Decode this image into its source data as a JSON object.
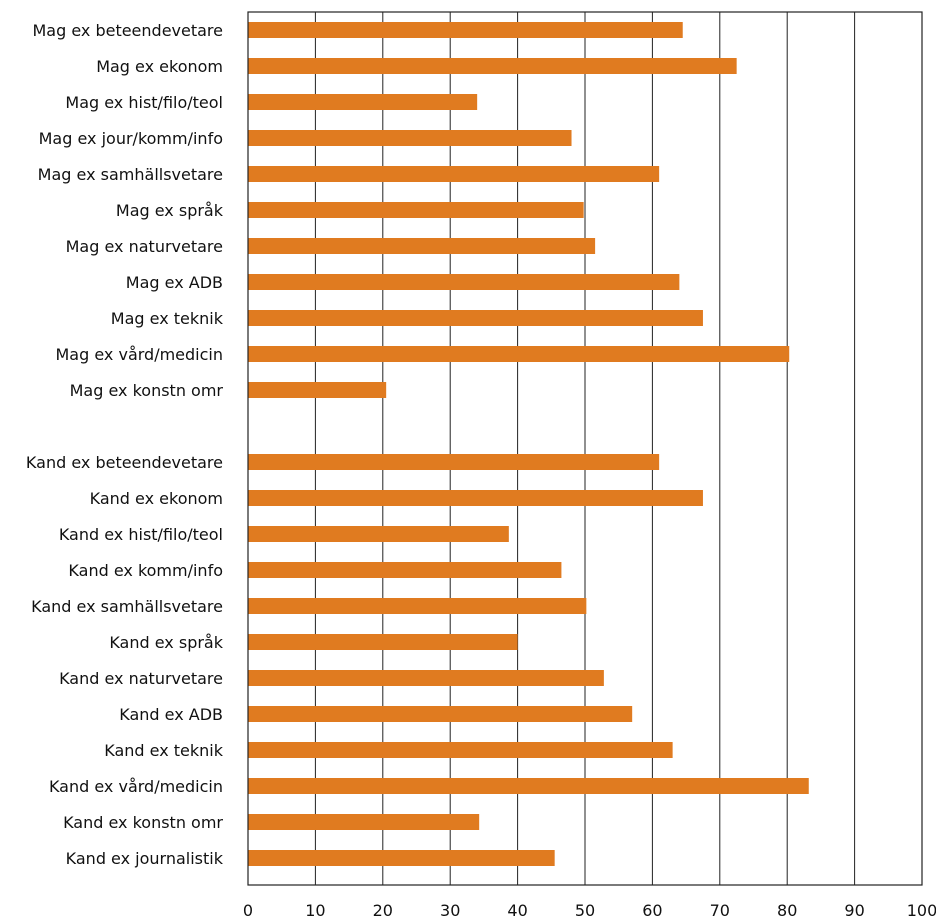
{
  "chart_data": {
    "type": "bar",
    "orientation": "horizontal",
    "categories": [
      "Mag ex beteendevetare",
      "Mag ex ekonom",
      "Mag ex hist/filo/teol",
      "Mag ex jour/komm/info",
      "Mag ex samhällsvetare",
      "Mag ex språk",
      "Mag ex naturvetare",
      "Mag ex ADB",
      "Mag ex teknik",
      "Mag ex vård/medicin",
      "Mag ex konstn omr",
      "",
      "Kand ex beteendevetare",
      "Kand ex ekonom",
      "Kand ex hist/filo/teol",
      "Kand ex komm/info",
      "Kand ex samhällsvetare",
      "Kand ex språk",
      "Kand ex naturvetare",
      "Kand ex ADB",
      "Kand ex teknik",
      "Kand ex vård/medicin",
      "Kand ex konstn omr",
      "Kand ex journalistik"
    ],
    "values": [
      64.5,
      72.5,
      34,
      48,
      61,
      49.8,
      51.5,
      64,
      67.5,
      80.3,
      20.5,
      null,
      61,
      67.5,
      38.7,
      46.5,
      50.2,
      40,
      52.8,
      57,
      63,
      83.2,
      34.3,
      45.5
    ],
    "xlim": [
      0,
      100
    ],
    "xticks": [
      "0",
      "10",
      "20",
      "30",
      "40",
      "50",
      "60",
      "70",
      "80",
      "90",
      "100"
    ],
    "grid": true,
    "bar_color": "#e07b20",
    "title": "",
    "xlabel": "",
    "ylabel": ""
  }
}
